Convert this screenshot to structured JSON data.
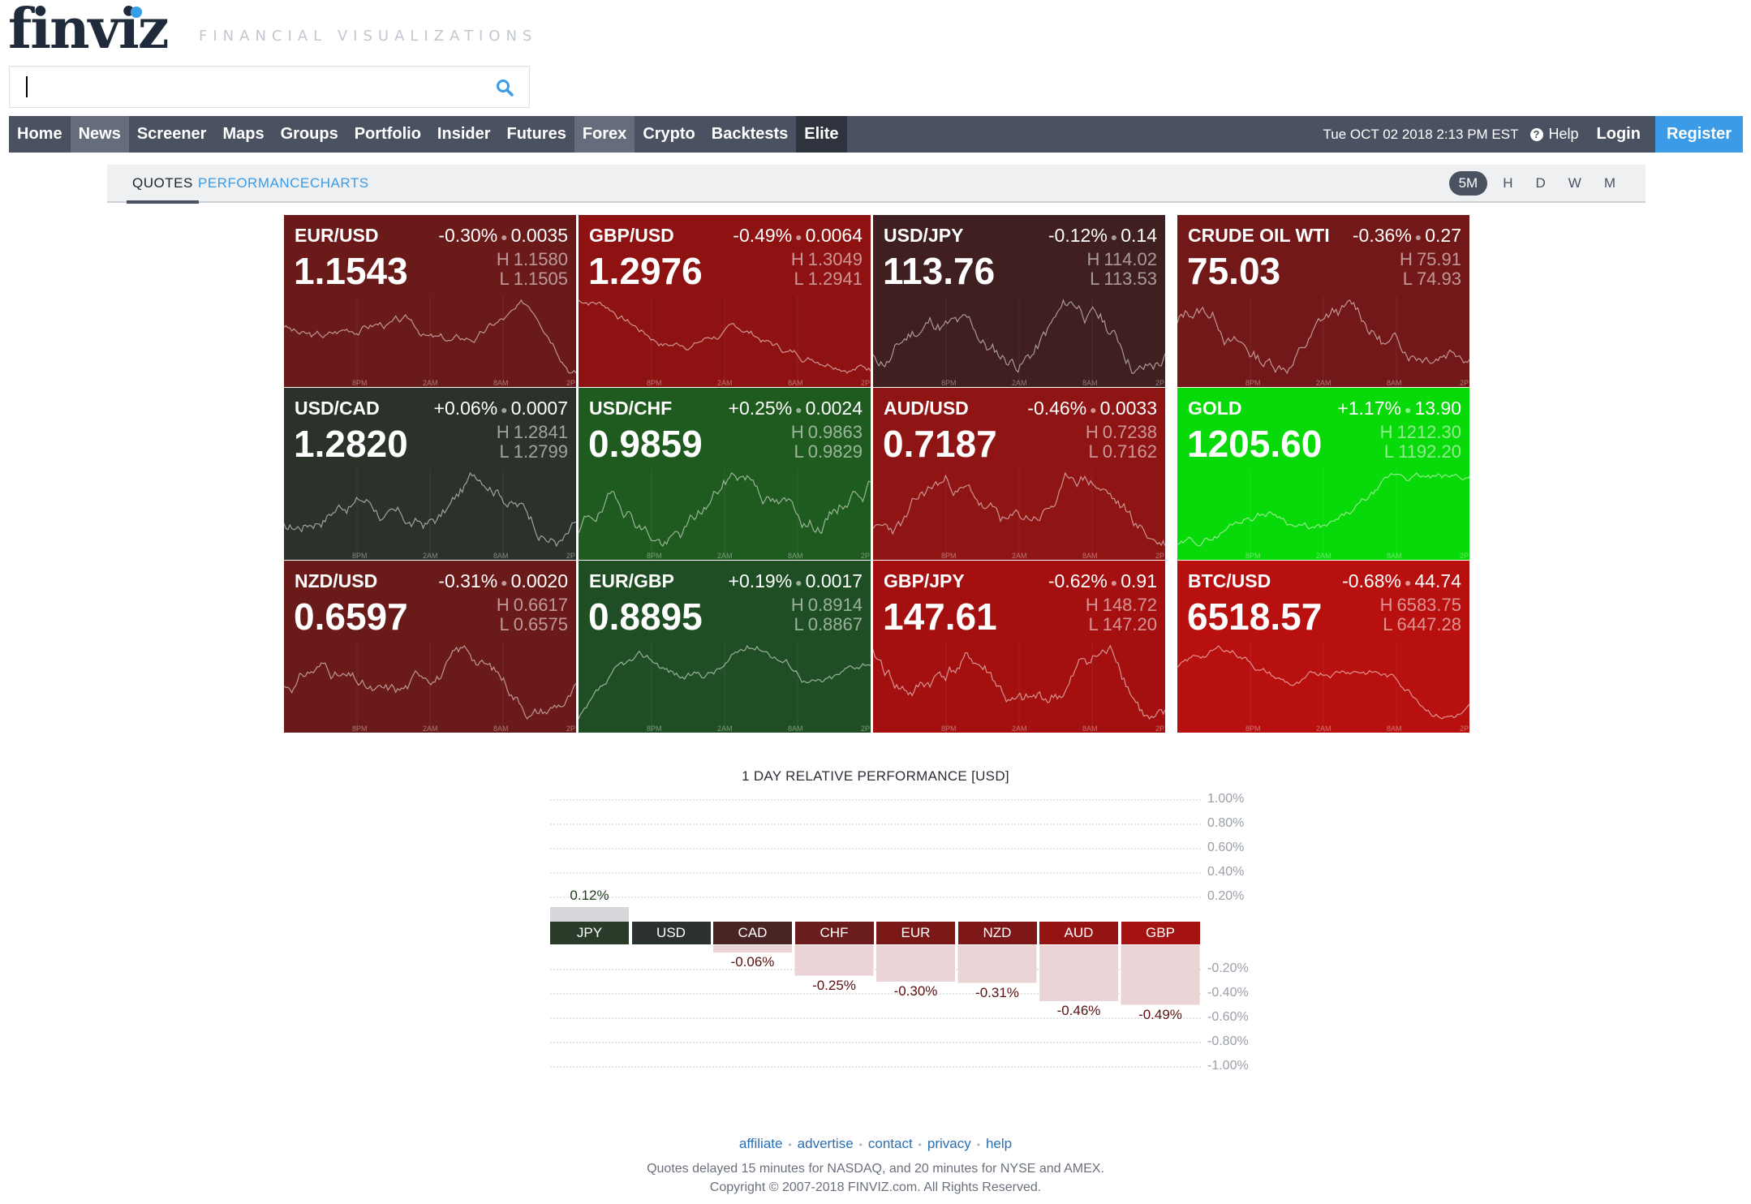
{
  "header": {
    "logo": "finviz",
    "tagline": "FINANCIAL VISUALIZATIONS",
    "search": {
      "value": "",
      "placeholder": ""
    }
  },
  "nav": {
    "items": [
      {
        "label": "Home",
        "state": "normal"
      },
      {
        "label": "News",
        "state": "active"
      },
      {
        "label": "Screener",
        "state": "normal"
      },
      {
        "label": "Maps",
        "state": "normal"
      },
      {
        "label": "Groups",
        "state": "normal"
      },
      {
        "label": "Portfolio",
        "state": "normal"
      },
      {
        "label": "Insider",
        "state": "normal"
      },
      {
        "label": "Futures",
        "state": "normal"
      },
      {
        "label": "Forex",
        "state": "active"
      },
      {
        "label": "Crypto",
        "state": "normal"
      },
      {
        "label": "Backtests",
        "state": "normal"
      },
      {
        "label": "Elite",
        "state": "dark"
      }
    ],
    "datetime": "Tue OCT 02 2018 2:13 PM EST",
    "help": "Help",
    "login": "Login",
    "register": "Register"
  },
  "subtabs": {
    "quotes": "QUOTES",
    "performance": "PERFORMANCE",
    "charts": "CHARTS",
    "timeframes": [
      "5M",
      "H",
      "D",
      "W",
      "M"
    ],
    "active_timeframe": "5M"
  },
  "tick_labels": [
    "8PM",
    "2AM",
    "8AM",
    "2P"
  ],
  "tiles": [
    {
      "name": "EUR/USD",
      "pct": "-0.30%",
      "chg": "0.0035",
      "price": "1.1543",
      "high": "1.1580",
      "low": "1.1505",
      "bg": "#6b1a1a",
      "seed": 3,
      "trend": -0.3
    },
    {
      "name": "GBP/USD",
      "pct": "-0.49%",
      "chg": "0.0064",
      "price": "1.2976",
      "high": "1.3049",
      "low": "1.2941",
      "bg": "#8f1212",
      "seed": 7,
      "trend": -0.6
    },
    {
      "name": "USD/JPY",
      "pct": "-0.12%",
      "chg": "0.14",
      "price": "113.76",
      "high": "114.02",
      "low": "113.53",
      "bg": "#3f1f1f",
      "seed": 11,
      "trend": -0.2
    },
    {
      "name": "CRUDE OIL WTI",
      "pct": "-0.36%",
      "chg": "0.27",
      "price": "75.03",
      "high": "75.91",
      "low": "74.93",
      "bg": "#731818",
      "seed": 13,
      "trend": 0.1
    },
    {
      "name": "USD/CAD",
      "pct": "+0.06%",
      "chg": "0.0007",
      "price": "1.2820",
      "high": "1.2841",
      "low": "1.2799",
      "bg": "#2a3229",
      "seed": 17,
      "trend": 0.4
    },
    {
      "name": "USD/CHF",
      "pct": "+0.25%",
      "chg": "0.0024",
      "price": "0.9859",
      "high": "0.9863",
      "low": "0.9829",
      "bg": "#1f5a1f",
      "seed": 19,
      "trend": 0.5
    },
    {
      "name": "AUD/USD",
      "pct": "-0.46%",
      "chg": "0.0033",
      "price": "0.7187",
      "high": "0.7238",
      "low": "0.7162",
      "bg": "#8f1414",
      "seed": 23,
      "trend": -0.5
    },
    {
      "name": "GOLD",
      "pct": "+1.17%",
      "chg": "13.90",
      "price": "1205.60",
      "high": "1212.30",
      "low": "1192.20",
      "bg": "#08d908",
      "seed": 29,
      "trend": 0.9
    },
    {
      "name": "NZD/USD",
      "pct": "-0.31%",
      "chg": "0.0020",
      "price": "0.6597",
      "high": "0.6617",
      "low": "0.6575",
      "bg": "#6b1a1a",
      "seed": 31,
      "trend": -0.2
    },
    {
      "name": "EUR/GBP",
      "pct": "+0.19%",
      "chg": "0.0017",
      "price": "0.8895",
      "high": "0.8914",
      "low": "0.8867",
      "bg": "#1f4e24",
      "seed": 37,
      "trend": 0.5
    },
    {
      "name": "GBP/JPY",
      "pct": "-0.62%",
      "chg": "0.91",
      "price": "147.61",
      "high": "148.72",
      "low": "147.20",
      "bg": "#a41010",
      "seed": 41,
      "trend": -0.6
    },
    {
      "name": "BTC/USD",
      "pct": "-0.68%",
      "chg": "44.74",
      "price": "6518.57",
      "high": "6583.75",
      "low": "6447.28",
      "bg": "#b80f0f",
      "seed": 43,
      "trend": -0.6
    }
  ],
  "performance": {
    "title": "1 DAY RELATIVE PERFORMANCE  [USD]",
    "axis_labels_pos": [
      "1.00%",
      "0.80%",
      "0.60%",
      "0.40%",
      "0.20%"
    ],
    "axis_labels_neg": [
      "-0.20%",
      "-0.40%",
      "-0.60%",
      "-0.80%",
      "-1.00%"
    ],
    "bars": [
      {
        "label": "JPY",
        "value": 0.12,
        "display": "0.12%",
        "color": "#2a3b2a"
      },
      {
        "label": "USD",
        "value": 0.0,
        "display": "",
        "color": "#2b3030"
      },
      {
        "label": "CAD",
        "value": -0.06,
        "display": "-0.06%",
        "color": "#4a2424"
      },
      {
        "label": "CHF",
        "value": -0.25,
        "display": "-0.25%",
        "color": "#6b1c1c"
      },
      {
        "label": "EUR",
        "value": -0.3,
        "display": "-0.30%",
        "color": "#7a1818"
      },
      {
        "label": "NZD",
        "value": -0.31,
        "display": "-0.31%",
        "color": "#7e1818"
      },
      {
        "label": "AUD",
        "value": -0.46,
        "display": "-0.46%",
        "color": "#961313"
      },
      {
        "label": "GBP",
        "value": -0.49,
        "display": "-0.49%",
        "color": "#a51212"
      }
    ]
  },
  "footer": {
    "links": [
      "affiliate",
      "advertise",
      "contact",
      "privacy",
      "help"
    ],
    "note1": "Quotes delayed 15 minutes for NASDAQ, and 20 minutes for NYSE and AMEX.",
    "note2": "Copyright © 2007-2018 FINVIZ.com. All Rights Reserved."
  },
  "chart_data": {
    "type": "bar",
    "title": "1 DAY RELATIVE PERFORMANCE  [USD]",
    "categories": [
      "JPY",
      "USD",
      "CAD",
      "CHF",
      "EUR",
      "NZD",
      "AUD",
      "GBP"
    ],
    "values": [
      0.12,
      0.0,
      -0.06,
      -0.25,
      -0.3,
      -0.31,
      -0.46,
      -0.49
    ],
    "ylabel": "",
    "ylim": [
      -1.0,
      1.0
    ],
    "grid": true
  }
}
